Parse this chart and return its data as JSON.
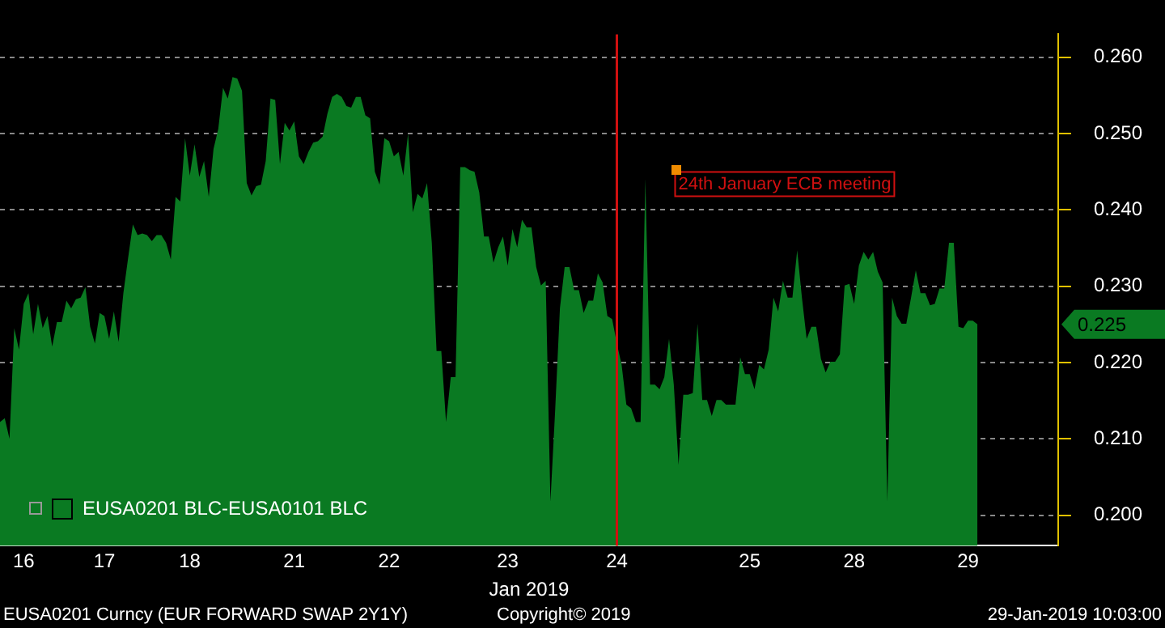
{
  "chart_data": {
    "type": "area",
    "xlabel": "Jan 2019",
    "categories": [
      null,
      null,
      null,
      null,
      null,
      "16",
      null,
      null,
      null,
      null,
      null,
      null,
      null,
      null,
      null,
      null,
      null,
      null,
      null,
      null,
      null,
      null,
      "17",
      null,
      null,
      null,
      null,
      null,
      null,
      null,
      null,
      null,
      null,
      null,
      null,
      null,
      null,
      null,
      null,
      null,
      "18",
      null,
      null,
      null,
      null,
      null,
      null,
      null,
      null,
      null,
      null,
      null,
      null,
      null,
      null,
      null,
      null,
      null,
      null,
      null,
      null,
      null,
      "21",
      null,
      null,
      null,
      null,
      null,
      null,
      null,
      null,
      null,
      null,
      null,
      null,
      null,
      null,
      null,
      null,
      null,
      null,
      null,
      "22",
      null,
      null,
      null,
      null,
      null,
      null,
      null,
      null,
      null,
      null,
      null,
      null,
      null,
      null,
      null,
      null,
      null,
      null,
      null,
      null,
      null,
      null,
      null,
      null,
      "23",
      null,
      null,
      null,
      null,
      null,
      null,
      null,
      null,
      null,
      null,
      null,
      null,
      null,
      null,
      null,
      null,
      null,
      null,
      null,
      null,
      null,
      null,
      "24",
      null,
      null,
      null,
      null,
      null,
      null,
      null,
      null,
      null,
      null,
      null,
      null,
      null,
      null,
      null,
      null,
      null,
      null,
      null,
      null,
      null,
      null,
      null,
      null,
      null,
      null,
      null,
      "25",
      null,
      null,
      null,
      null,
      null,
      null,
      null,
      null,
      null,
      null,
      null,
      null,
      null,
      null,
      null,
      null,
      null,
      null,
      null,
      null,
      null,
      "28",
      null,
      null,
      null,
      null,
      null,
      null,
      null,
      null,
      null,
      null,
      null,
      null,
      null,
      null,
      null,
      null,
      null,
      null,
      null,
      null,
      null,
      null,
      null,
      "29",
      null,
      null,
      null,
      null,
      null,
      null,
      null,
      null,
      null,
      null,
      null,
      null,
      null,
      null,
      null,
      null,
      null,
      null,
      null
    ],
    "series": [
      {
        "name": "EUSA0201 BLC-EUSA0101 BLC",
        "color": "#0a7a22",
        "values": [
          0.2122,
          0.2127,
          0.21,
          0.2245,
          0.2217,
          0.2277,
          0.2291,
          0.2237,
          0.2277,
          0.2245,
          0.2261,
          0.2221,
          0.2253,
          0.2253,
          0.2281,
          0.2271,
          0.2283,
          0.2285,
          0.2299,
          0.2247,
          0.2225,
          0.2265,
          0.2261,
          0.2231,
          0.2267,
          0.2227,
          0.2291,
          0.2337,
          0.2381,
          0.2367,
          0.2369,
          0.2367,
          0.2359,
          0.2367,
          0.2367,
          0.2357,
          0.2335,
          0.2417,
          0.2411,
          0.2494,
          0.2445,
          0.2486,
          0.2443,
          0.2464,
          0.2417,
          0.248,
          0.2506,
          0.256,
          0.2546,
          0.2574,
          0.2572,
          0.2556,
          0.2435,
          0.2419,
          0.2431,
          0.2433,
          0.2464,
          0.2546,
          0.2544,
          0.246,
          0.2514,
          0.2504,
          0.2516,
          0.247,
          0.246,
          0.2476,
          0.2488,
          0.249,
          0.2496,
          0.2526,
          0.2548,
          0.2552,
          0.2548,
          0.2536,
          0.2534,
          0.2548,
          0.2548,
          0.2524,
          0.252,
          0.245,
          0.2433,
          0.2494,
          0.249,
          0.247,
          0.2476,
          0.2445,
          0.25,
          0.2397,
          0.2421,
          0.2415,
          0.2435,
          0.2357,
          0.2215,
          0.2215,
          0.2122,
          0.2181,
          0.2181,
          0.2456,
          0.2456,
          0.2452,
          0.245,
          0.2423,
          0.2365,
          0.2365,
          0.2331,
          0.2351,
          0.2365,
          0.2327,
          0.2375,
          0.2351,
          0.2387,
          0.2377,
          0.2377,
          0.2325,
          0.2301,
          0.2307,
          0.2018,
          0.2138,
          0.2271,
          0.2325,
          0.2325,
          0.2295,
          0.2295,
          0.2265,
          0.2281,
          0.2281,
          0.2317,
          0.2305,
          0.2261,
          0.2257,
          0.2225,
          0.2197,
          0.2145,
          0.214,
          0.2122,
          0.2122,
          0.2441,
          0.2171,
          0.2171,
          0.2165,
          0.2181,
          0.2231,
          0.2171,
          0.2066,
          0.2158,
          0.2158,
          0.216,
          0.2251,
          0.2151,
          0.2151,
          0.213,
          0.2151,
          0.2151,
          0.2145,
          0.2145,
          0.2145,
          0.2207,
          0.2185,
          0.2185,
          0.2165,
          0.2197,
          0.2191,
          0.2217,
          0.2285,
          0.2267,
          0.2307,
          0.2285,
          0.2285,
          0.2347,
          0.2285,
          0.2231,
          0.2247,
          0.2247,
          0.2205,
          0.2187,
          0.2201,
          0.2201,
          0.2211,
          0.2301,
          0.2303,
          0.2277,
          0.2327,
          0.2345,
          0.2335,
          0.2345,
          0.2319,
          0.2305,
          0.2018,
          0.2285,
          0.2261,
          0.2251,
          0.2251,
          0.2285,
          0.2321,
          0.2291,
          0.2291,
          0.2275,
          0.2277,
          0.2297,
          0.2297,
          0.2357,
          0.2357,
          0.2247,
          0.2245,
          0.2255,
          0.2255,
          0.225,
          null,
          null,
          null,
          null,
          null,
          null,
          null,
          null,
          null,
          null,
          null,
          null,
          null,
          null,
          null,
          null,
          null
        ]
      }
    ],
    "ylim": [
      0.196,
      0.263
    ],
    "yticks": [
      {
        "value": 0.2,
        "label": "0.200"
      },
      {
        "value": 0.21,
        "label": "0.210"
      },
      {
        "value": 0.22,
        "label": "0.220"
      },
      {
        "value": 0.23,
        "label": "0.230"
      },
      {
        "value": 0.24,
        "label": "0.240"
      },
      {
        "value": 0.25,
        "label": "0.250"
      },
      {
        "value": 0.26,
        "label": "0.260"
      }
    ],
    "grid": "y",
    "legend": "bottom left",
    "ref_lines": [
      {
        "axis": "x",
        "value": "24",
        "label": "24th January ECB meeting",
        "color": "#d01010"
      }
    ],
    "annotations": [
      "0.225",
      "EUSA0201 Curncy (EUR FORWARD SWAP 2Y1Y)",
      "Copyright© 2019",
      "29-Jan-2019 10:03:00"
    ]
  }
}
